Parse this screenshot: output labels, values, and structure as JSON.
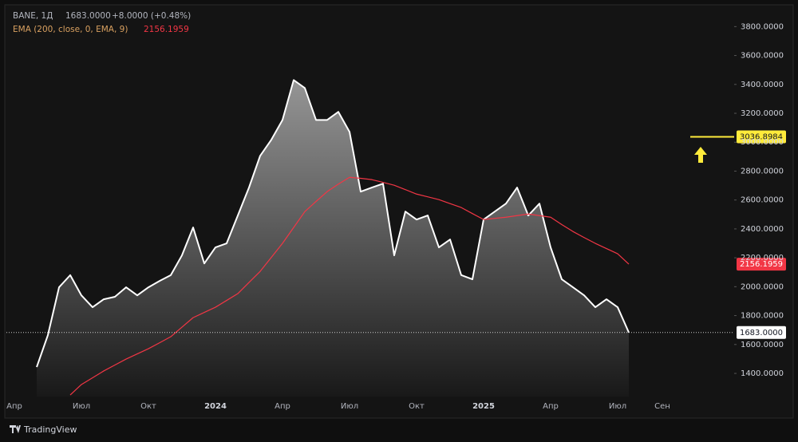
{
  "chart_data": {
    "type": "line",
    "legend": {
      "symbol": "BANE, 1Д",
      "change": "+8.0000 (+0.48%)",
      "indicator": "EMA (200, close, 0, EMA, 9)"
    },
    "categories": [
      "Апр",
      null,
      null,
      null,
      null,
      null,
      "Июл",
      null,
      null,
      null,
      null,
      null,
      "Окт",
      null,
      null,
      null,
      null,
      null,
      "2024",
      null,
      null,
      null,
      null,
      null,
      "Апр",
      null,
      null,
      null,
      null,
      null,
      "Июл",
      null,
      null,
      null,
      null,
      null,
      "Окт",
      null,
      null,
      null,
      null,
      null,
      "2025",
      null,
      null,
      null,
      null,
      null,
      "Апр",
      null,
      null,
      null,
      null,
      null,
      "Июл",
      null,
      null,
      null,
      "Сен",
      null,
      null,
      null,
      null,
      null,
      null
    ],
    "series": [
      {
        "name": "BANE",
        "color": "#ffffff",
        "area": true,
        "values": [
          null,
          null,
          1444,
          1665,
          1996,
          2080,
          1940,
          1858,
          1913,
          1930,
          1996,
          1940,
          1996,
          2040,
          2080,
          2217,
          2410,
          2161,
          2272,
          2300,
          2493,
          2686,
          2906,
          3017,
          3154,
          3430,
          3375,
          3154,
          3154,
          3210,
          3072,
          2658,
          2686,
          2713,
          2217,
          2520,
          2465,
          2493,
          2272,
          2327,
          2080,
          2051,
          2465,
          2520,
          2575,
          2686,
          2493,
          2575,
          2272,
          2051,
          1996,
          1940,
          1858,
          1913,
          1858,
          1683,
          null,
          null,
          null,
          null,
          null,
          null,
          null,
          null,
          null
        ],
        "value_labels": [
          null,
          null,
          null,
          null,
          null,
          null,
          null,
          null,
          null,
          null,
          null,
          null,
          null,
          null,
          null,
          null,
          null,
          null,
          null,
          null,
          null,
          null,
          null,
          null,
          null,
          null,
          null,
          null,
          null,
          null,
          null,
          null,
          null,
          null,
          null,
          null,
          null,
          null,
          null,
          null,
          null,
          null,
          null,
          null,
          null,
          null,
          null,
          null,
          null,
          null,
          null,
          null,
          null,
          null,
          null,
          "1683.0000",
          null,
          null,
          null,
          null,
          null,
          null,
          null,
          null,
          null
        ]
      },
      {
        "name": "EMA",
        "color": "#f23645",
        "values": [
          null,
          null,
          null,
          null,
          null,
          1251,
          1323,
          1370,
          1417,
          1458,
          1499,
          1535,
          1571,
          1612,
          1654,
          1720,
          1786,
          1822,
          1858,
          1905,
          1952,
          2029,
          2106,
          2203,
          2300,
          2410,
          2520,
          2590,
          2658,
          2710,
          2757,
          2750,
          2741,
          2722,
          2702,
          2672,
          2641,
          2622,
          2603,
          2575,
          2548,
          2506,
          2465,
          2473,
          2481,
          2492,
          2503,
          2492,
          2481,
          2430,
          2382,
          2340,
          2300,
          2264,
          2228,
          2156.1959,
          null,
          null,
          null,
          null,
          null,
          null,
          null,
          null,
          null
        ]
      }
    ],
    "horizontal_line": {
      "value": 3036.8984,
      "color": "#ffeb3b"
    },
    "ylim": [
      1240,
      3940
    ],
    "yticks": [
      {
        "value": 1400,
        "label": "1400.0000"
      },
      {
        "value": 1600,
        "label": "1600.0000"
      },
      {
        "value": 1800,
        "label": "1800.0000"
      },
      {
        "value": 2000,
        "label": "2000.0000"
      },
      {
        "value": 2200,
        "label": "2200.0000"
      },
      {
        "value": 2400,
        "label": "2400.0000"
      },
      {
        "value": 2600,
        "label": "2600.0000"
      },
      {
        "value": 2800,
        "label": "2800.0000"
      },
      {
        "value": 3000,
        "label": "3000.0000"
      },
      {
        "value": 3200,
        "label": "3200.0000"
      },
      {
        "value": 3400,
        "label": "3400.0000"
      },
      {
        "value": 3600,
        "label": "3600.0000"
      },
      {
        "value": 3800,
        "label": "3800.0000"
      }
    ],
    "grid": false,
    "branding": "TradingView"
  }
}
